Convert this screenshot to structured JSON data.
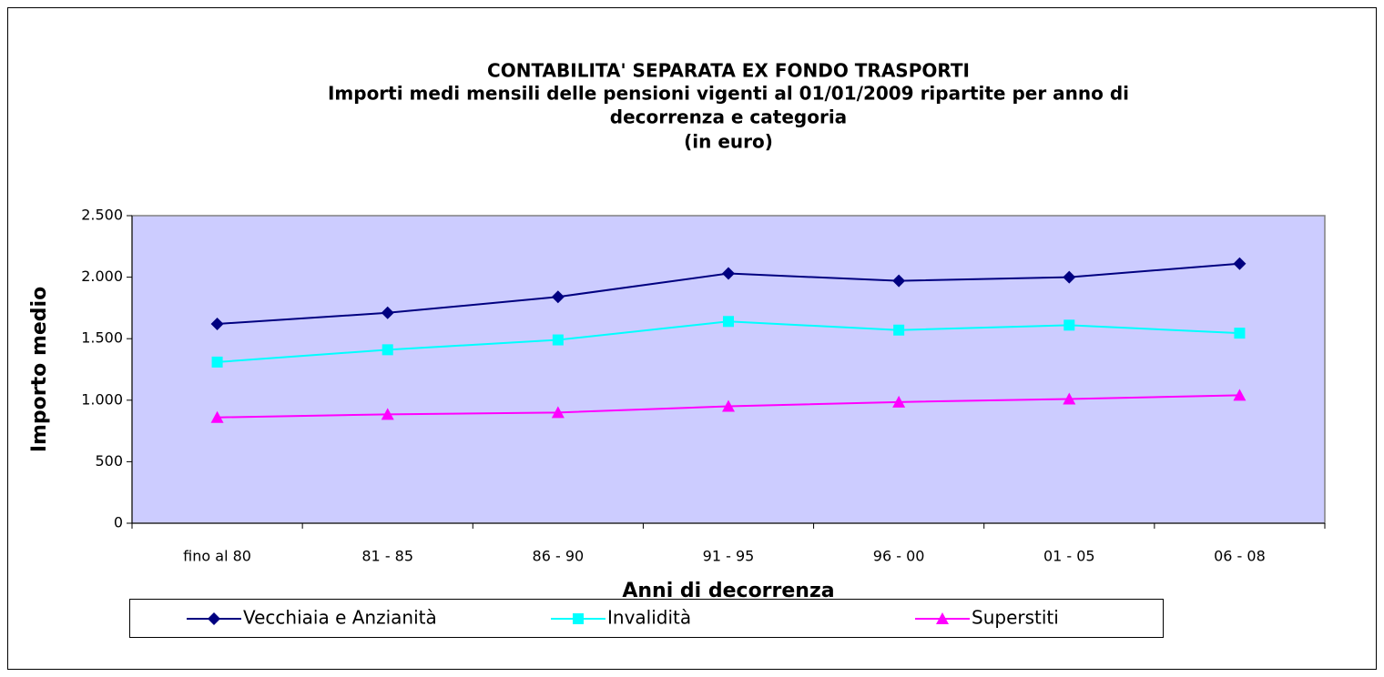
{
  "chart_data": {
    "type": "line",
    "title": [
      "CONTABILITA' SEPARATA EX FONDO TRASPORTI",
      "Importi medi mensili delle pensioni vigenti al 01/01/2009 ripartite per anno di",
      "decorrenza e categoria",
      "(in euro)"
    ],
    "x_label": "Anni di decorrenza",
    "y_label": "Importo medio",
    "categories": [
      "fino al 80",
      "81 - 85",
      "86 - 90",
      "91 - 95",
      "96 - 00",
      "01 - 05",
      "06 - 08"
    ],
    "series": [
      {
        "name": "Vecchiaia e Anzianità",
        "color": "#000080",
        "marker": "diamond",
        "values": [
          1620,
          1710,
          1840,
          2030,
          1970,
          2000,
          2110
        ]
      },
      {
        "name": "Invalidità",
        "color": "#00FFFF",
        "marker": "square",
        "values": [
          1310,
          1410,
          1490,
          1640,
          1570,
          1610,
          1545
        ]
      },
      {
        "name": "Superstiti",
        "color": "#FF00FF",
        "marker": "triangle",
        "values": [
          860,
          885,
          900,
          950,
          985,
          1010,
          1040
        ]
      }
    ],
    "ylim": [
      0,
      2500
    ],
    "yticks": [
      0,
      500,
      {
        "value": 1000,
        "label": "1.000"
      },
      {
        "value": 1500,
        "label": "1.500"
      },
      {
        "value": 2000,
        "label": "2.000"
      },
      {
        "value": 2500,
        "label": "2.500"
      }
    ],
    "plot_background": "#CCCCFF",
    "legend": "bottom"
  }
}
